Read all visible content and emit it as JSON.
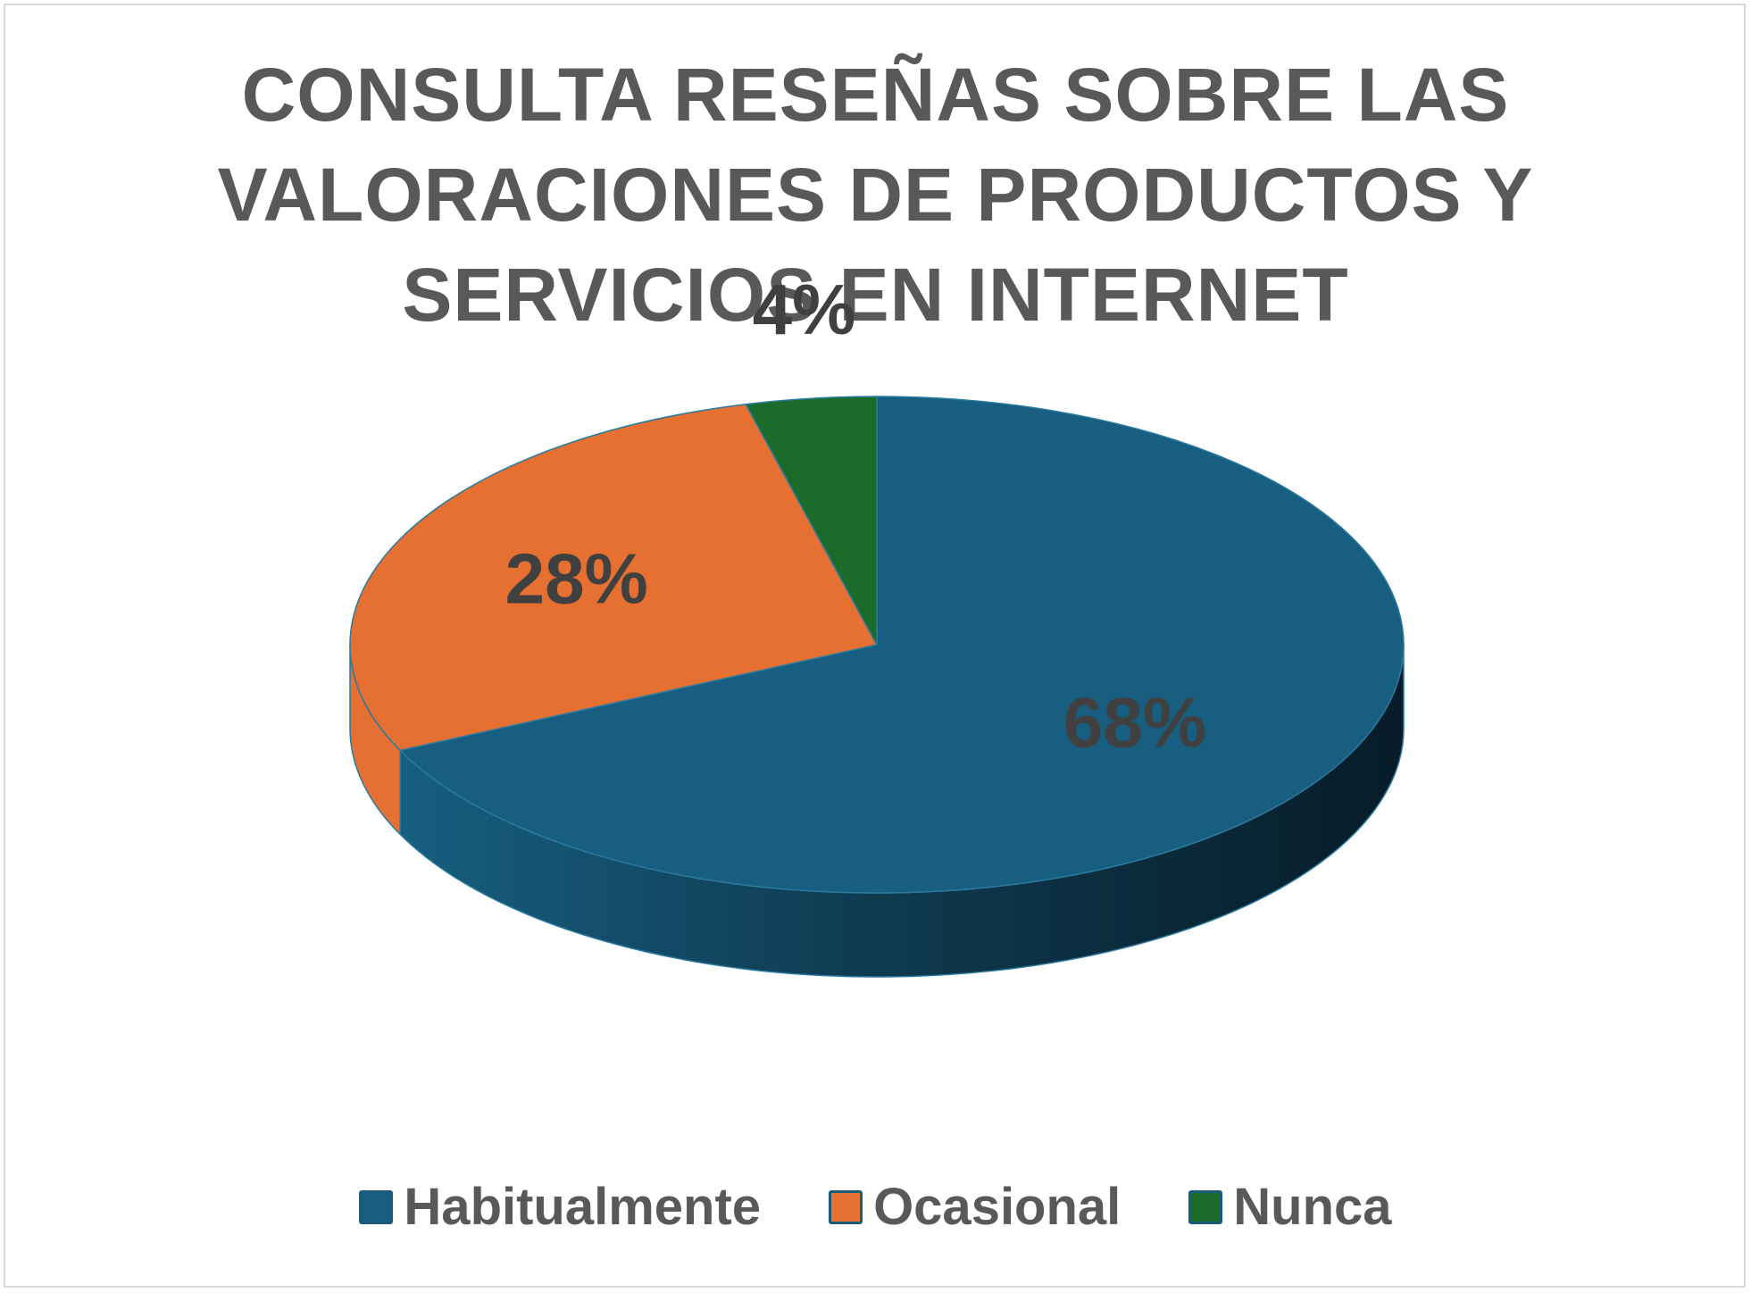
{
  "chart_data": {
    "type": "pie",
    "title_lines": [
      "CONSULTA RESEÑAS SOBRE LAS",
      "VALORACIONES DE PRODUCTOS Y",
      "SERVICIOS EN INTERNET"
    ],
    "categories": [
      "Habitualmente",
      "Ocasional",
      "Nunca"
    ],
    "values": [
      68,
      28,
      4
    ],
    "data_labels": [
      "68%",
      "28%",
      "4%"
    ],
    "colors": [
      "#175e80",
      "#e57032",
      "#1b6b2a"
    ],
    "legend_position": "bottom"
  }
}
